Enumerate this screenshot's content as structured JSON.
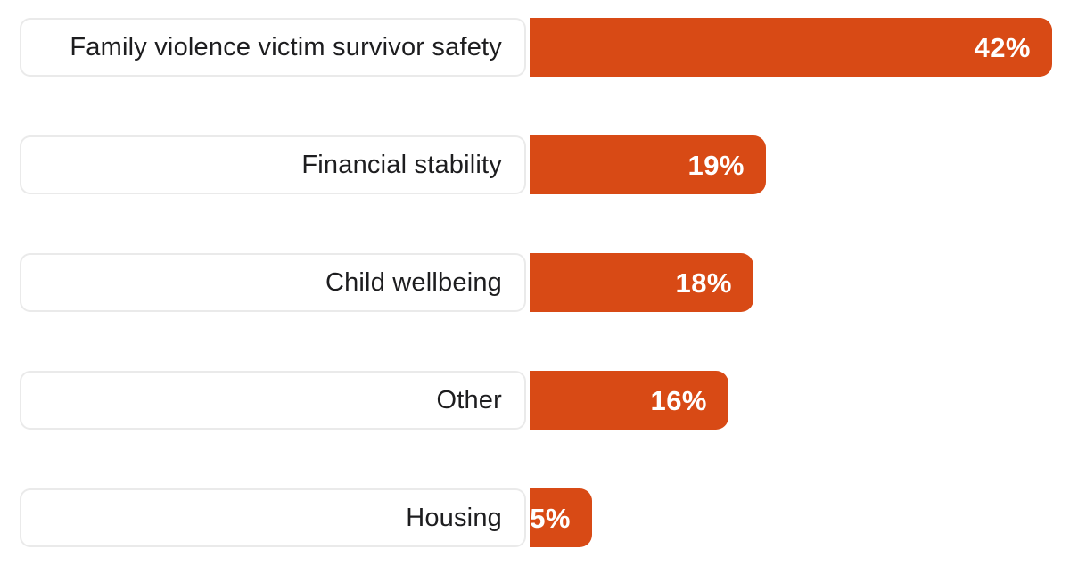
{
  "chart_data": {
    "type": "bar",
    "orientation": "horizontal",
    "title": "",
    "xlabel": "",
    "ylabel": "",
    "xlim": [
      0,
      42
    ],
    "grid": false,
    "legend": false,
    "unit": "%",
    "categories": [
      "Family violence victim survivor safety",
      "Financial stability",
      "Child wellbeing",
      "Other",
      "Housing"
    ],
    "values": [
      42,
      19,
      18,
      16,
      5
    ],
    "value_labels": [
      "42%",
      "19%",
      "18%",
      "16%",
      "5%"
    ],
    "colors": {
      "bar_fill": "#D84A15",
      "value_label_text": "#FFFFFF",
      "category_label_text": "#1D1D1F",
      "category_box_border": "#EAEAEA",
      "background": "#FFFFFF"
    }
  }
}
